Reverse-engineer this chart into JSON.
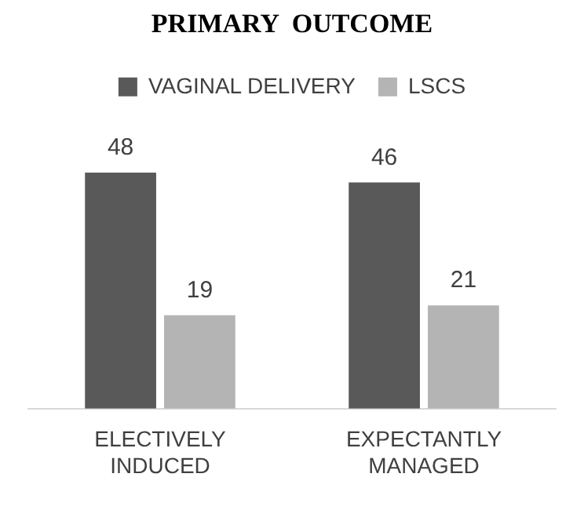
{
  "chart_data": {
    "type": "bar",
    "title": "PRIMARY  OUTCOME",
    "categories": [
      "ELECTIVELY INDUCED",
      "EXPECTANTLY MANAGED"
    ],
    "series": [
      {
        "name": "VAGINAL DELIVERY",
        "color": "#595959",
        "values": [
          48,
          46
        ]
      },
      {
        "name": "LSCS",
        "color": "#b4b4b4",
        "values": [
          19,
          21
        ]
      }
    ],
    "data_labels": true,
    "legend": "top",
    "grid": false
  }
}
